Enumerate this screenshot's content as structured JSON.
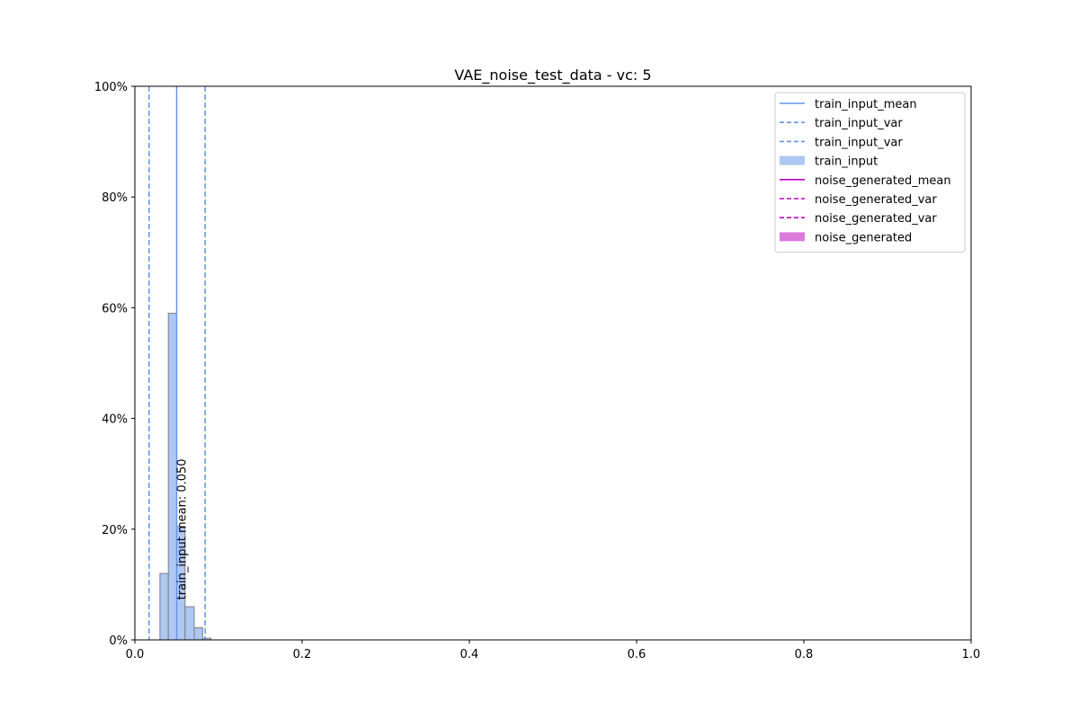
{
  "chart_data": {
    "type": "histogram",
    "title": "VAE_noise_test_data - vc: 5",
    "xlabel": "",
    "ylabel": "",
    "xlim": [
      0.0,
      1.0
    ],
    "ylim": [
      0,
      100
    ],
    "x_ticks": [
      0.0,
      0.2,
      0.4,
      0.6,
      0.8,
      1.0
    ],
    "x_tick_labels": [
      "0.0",
      "0.2",
      "0.4",
      "0.6",
      "0.8",
      "1.0"
    ],
    "y_ticks": [
      0,
      20,
      40,
      60,
      80,
      100
    ],
    "y_tick_labels": [
      "0%",
      "20%",
      "40%",
      "60%",
      "80%",
      "100%"
    ],
    "grid": false,
    "legend_position": "upper right",
    "series": [
      {
        "name": "train_input",
        "color": "#aec7f3",
        "edge_color": "#7f7f7f",
        "bins": [
          {
            "x0": 0.03,
            "x1": 0.04,
            "percent": 12.0
          },
          {
            "x0": 0.04,
            "x1": 0.05,
            "percent": 59.0
          },
          {
            "x0": 0.05,
            "x1": 0.06,
            "percent": 20.5
          },
          {
            "x0": 0.06,
            "x1": 0.071,
            "percent": 6.0
          },
          {
            "x0": 0.071,
            "x1": 0.081,
            "percent": 2.2
          },
          {
            "x0": 0.081,
            "x1": 0.091,
            "percent": 0.3
          }
        ]
      },
      {
        "name": "noise_generated",
        "color": "#dd7bdd",
        "bins": []
      }
    ],
    "vlines": [
      {
        "name": "train_input_mean",
        "x": 0.05,
        "color": "#6495ed",
        "style": "solid"
      },
      {
        "name": "train_input_var",
        "x": 0.017,
        "color": "#6495ed",
        "style": "dashed"
      },
      {
        "name": "train_input_var",
        "x": 0.084,
        "color": "#6495ed",
        "style": "dashed"
      }
    ],
    "annotations": [
      {
        "text": "train_input mean: 0.050",
        "x": 0.05,
        "y_percent": 4,
        "rotation": -90
      }
    ],
    "legend": [
      {
        "label": "train_input_mean",
        "kind": "line",
        "style": "solid",
        "color": "#6495ed"
      },
      {
        "label": "train_input_var",
        "kind": "line",
        "style": "dashed",
        "color": "#6495ed"
      },
      {
        "label": "train_input_var",
        "kind": "line",
        "style": "dashed",
        "color": "#6495ed"
      },
      {
        "label": "train_input",
        "kind": "patch",
        "color": "#aec7f3"
      },
      {
        "label": "noise_generated_mean",
        "kind": "line",
        "style": "solid",
        "color": "#bf00bf"
      },
      {
        "label": "noise_generated_var",
        "kind": "line",
        "style": "dashed",
        "color": "#bf00bf"
      },
      {
        "label": "noise_generated_var",
        "kind": "line",
        "style": "dashed",
        "color": "#bf00bf"
      },
      {
        "label": "noise_generated",
        "kind": "patch",
        "color": "#dd7bdd"
      }
    ]
  }
}
